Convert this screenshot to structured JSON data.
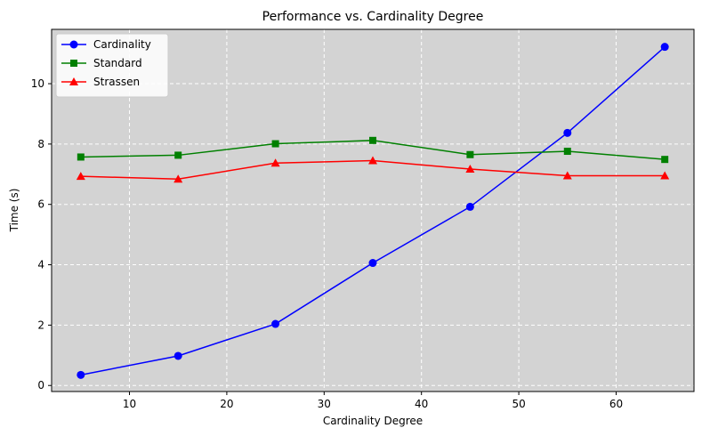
{
  "chart_data": {
    "type": "line",
    "title": "Performance vs. Cardinality Degree",
    "xlabel": "Cardinality Degree",
    "ylabel": "Time (s)",
    "x": [
      5,
      15,
      25,
      35,
      45,
      55,
      65
    ],
    "xlim": [
      2,
      68
    ],
    "ylim": [
      -0.2,
      11.8
    ],
    "xticks": [
      10,
      20,
      30,
      40,
      50,
      60
    ],
    "yticks": [
      0,
      2,
      4,
      6,
      8,
      10
    ],
    "grid": true,
    "grid_style": "dashed-white",
    "plot_background": "#d3d3d3",
    "legend_position": "top-left",
    "series": [
      {
        "name": "Cardinality",
        "color": "#0000ff",
        "marker": "circle",
        "values": [
          0.35,
          0.98,
          2.04,
          4.06,
          5.92,
          8.37,
          11.22
        ]
      },
      {
        "name": "Standard",
        "color": "#008000",
        "marker": "square",
        "values": [
          7.57,
          7.63,
          8.01,
          8.12,
          7.65,
          7.76,
          7.49
        ]
      },
      {
        "name": "Strassen",
        "color": "#ff0000",
        "marker": "triangle",
        "values": [
          6.93,
          6.84,
          7.37,
          7.45,
          7.17,
          6.95,
          6.95
        ]
      }
    ]
  }
}
